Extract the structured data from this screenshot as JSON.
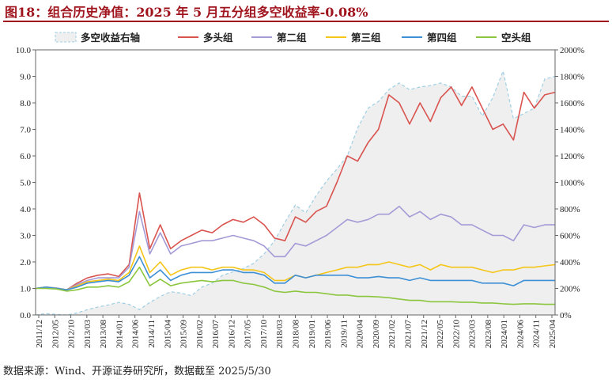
{
  "title": "图18：组合历史净值：2025 年 5 月五分组多空收益率-0.08%",
  "source": "数据来源：Wind、开源证券研究所，数据截至 2025/5/30",
  "chart_data": {
    "type": "line",
    "x_labels": [
      "2011/12",
      "2012/05",
      "2012/10",
      "2013/03",
      "2013/08",
      "2014/01",
      "2014/06",
      "2014/11",
      "2015/04",
      "2015/09",
      "2016/02",
      "2016/07",
      "2016/12",
      "2017/05",
      "2017/10",
      "2018/03",
      "2018/08",
      "2019/01",
      "2019/06",
      "2019/11",
      "2020/04",
      "2020/09",
      "2021/02",
      "2021/07",
      "2021/12",
      "2022/05",
      "2022/10",
      "2023/03",
      "2023/08",
      "2024/01",
      "2024/06",
      "2024/11",
      "2025/04"
    ],
    "y_left": {
      "min": 0,
      "max": 10,
      "ticks": [
        "0.0",
        "1.0",
        "2.0",
        "3.0",
        "4.0",
        "5.0",
        "6.0",
        "7.0",
        "8.0",
        "9.0",
        "10.0"
      ]
    },
    "y_right": {
      "min": 0,
      "max": 2000,
      "ticks": [
        "0%",
        "200%",
        "400%",
        "600%",
        "800%",
        "1000%",
        "1200%",
        "1400%",
        "1600%",
        "1800%",
        "2000%"
      ]
    },
    "series": [
      {
        "name": "多空收益右轴",
        "axis": "right",
        "style": "area",
        "color": "#9ecfe3",
        "fill": "#efefef",
        "values": [
          0,
          10,
          5,
          0,
          15,
          40,
          60,
          75,
          95,
          80,
          40,
          95,
          140,
          175,
          165,
          145,
          210,
          240,
          300,
          325,
          350,
          390,
          460,
          560,
          700,
          830,
          770,
          900,
          1010,
          1100,
          1200,
          1410,
          1560,
          1610,
          1700,
          1750,
          1700,
          1720,
          1730,
          1750,
          1720,
          1650,
          1650,
          1500,
          1640,
          1840,
          1480,
          1520,
          1560,
          1780,
          1800
        ]
      },
      {
        "name": "多头组",
        "axis": "left",
        "color": "#d9534f",
        "values": [
          1.0,
          1.05,
          1.0,
          0.95,
          1.2,
          1.4,
          1.5,
          1.55,
          1.45,
          1.9,
          4.6,
          2.5,
          3.4,
          2.5,
          2.8,
          3.0,
          3.2,
          3.1,
          3.4,
          3.6,
          3.5,
          3.7,
          3.4,
          2.9,
          2.8,
          3.7,
          3.5,
          3.9,
          4.1,
          5.0,
          6.0,
          5.8,
          6.5,
          7.0,
          8.3,
          8.0,
          7.2,
          8.0,
          7.3,
          8.2,
          8.6,
          7.9,
          8.6,
          7.8,
          7.0,
          7.2,
          6.6,
          8.4,
          7.8,
          8.3,
          8.4
        ]
      },
      {
        "name": "第二组",
        "axis": "left",
        "color": "#a49ad6",
        "values": [
          1.0,
          1.05,
          1.02,
          0.95,
          1.15,
          1.3,
          1.4,
          1.4,
          1.4,
          1.8,
          3.9,
          2.3,
          3.1,
          2.3,
          2.6,
          2.7,
          2.8,
          2.8,
          2.9,
          3.0,
          2.9,
          2.8,
          2.6,
          2.2,
          2.2,
          2.7,
          2.6,
          2.8,
          3.0,
          3.3,
          3.6,
          3.5,
          3.6,
          3.8,
          3.8,
          4.1,
          3.7,
          3.9,
          3.6,
          3.8,
          3.7,
          3.4,
          3.4,
          3.2,
          3.0,
          3.0,
          2.8,
          3.4,
          3.3,
          3.4,
          3.4
        ]
      },
      {
        "name": "第三组",
        "axis": "left",
        "color": "#f5c518",
        "values": [
          1.0,
          1.05,
          1.0,
          0.95,
          1.1,
          1.25,
          1.3,
          1.35,
          1.3,
          1.6,
          2.6,
          1.6,
          2.0,
          1.5,
          1.7,
          1.8,
          1.8,
          1.7,
          1.8,
          1.8,
          1.7,
          1.7,
          1.6,
          1.3,
          1.3,
          1.5,
          1.4,
          1.5,
          1.6,
          1.7,
          1.8,
          1.8,
          1.9,
          1.9,
          2.0,
          1.9,
          1.8,
          1.9,
          1.7,
          1.9,
          1.8,
          1.8,
          1.8,
          1.7,
          1.6,
          1.7,
          1.7,
          1.8,
          1.8,
          1.85,
          1.9
        ]
      },
      {
        "name": "第四组",
        "axis": "left",
        "color": "#3d8fd6",
        "values": [
          1.0,
          1.05,
          1.0,
          0.95,
          1.05,
          1.2,
          1.25,
          1.3,
          1.25,
          1.5,
          2.2,
          1.4,
          1.7,
          1.3,
          1.5,
          1.6,
          1.6,
          1.6,
          1.7,
          1.7,
          1.6,
          1.6,
          1.5,
          1.2,
          1.2,
          1.5,
          1.4,
          1.5,
          1.5,
          1.5,
          1.5,
          1.4,
          1.4,
          1.45,
          1.4,
          1.4,
          1.3,
          1.4,
          1.3,
          1.3,
          1.3,
          1.3,
          1.3,
          1.2,
          1.2,
          1.2,
          1.1,
          1.3,
          1.3,
          1.3,
          1.3
        ]
      },
      {
        "name": "空头组",
        "axis": "left",
        "color": "#8cc63f",
        "values": [
          1.0,
          1.0,
          0.98,
          0.9,
          0.95,
          1.05,
          1.05,
          1.1,
          1.05,
          1.25,
          1.8,
          1.1,
          1.35,
          1.1,
          1.2,
          1.25,
          1.3,
          1.25,
          1.3,
          1.3,
          1.2,
          1.15,
          1.05,
          0.9,
          0.85,
          0.9,
          0.85,
          0.85,
          0.8,
          0.75,
          0.75,
          0.7,
          0.7,
          0.68,
          0.65,
          0.6,
          0.55,
          0.55,
          0.5,
          0.5,
          0.5,
          0.48,
          0.48,
          0.45,
          0.45,
          0.42,
          0.4,
          0.42,
          0.42,
          0.4,
          0.4
        ]
      }
    ],
    "legend_position": "top",
    "grid": false
  }
}
